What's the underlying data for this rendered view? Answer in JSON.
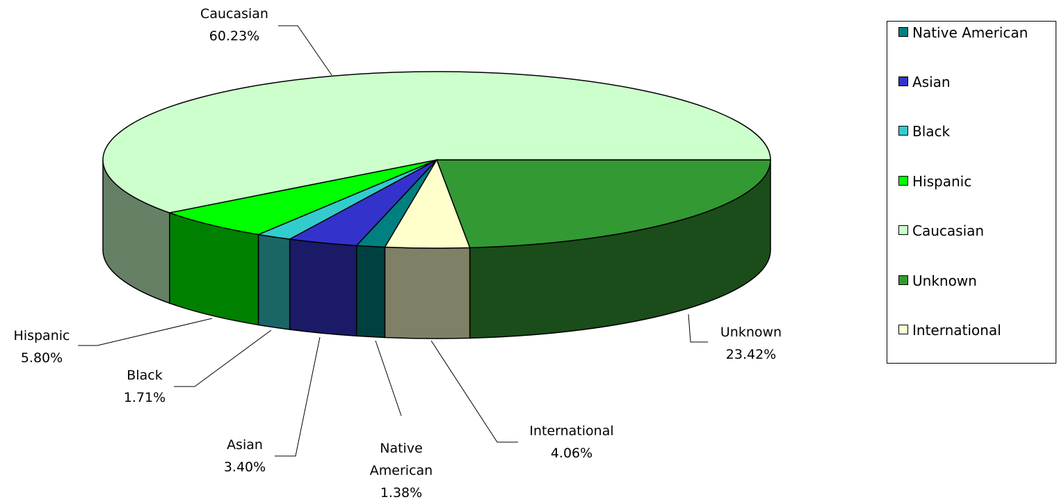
{
  "chart_data": {
    "type": "pie3d",
    "categories": [
      "Native American",
      "Asian",
      "Black",
      "Hispanic",
      "Caucasian",
      "Unknown",
      "International"
    ],
    "values": [
      1.38,
      3.4,
      1.71,
      5.8,
      60.23,
      23.42,
      4.06
    ],
    "value_labels": [
      "1.38%",
      "3.40%",
      "1.71%",
      "5.80%",
      "60.23%",
      "23.42%",
      "4.06%"
    ],
    "colors": [
      "#008080",
      "#3333cc",
      "#33cccc",
      "#00ff00",
      "#ccffcc",
      "#339933",
      "#ffffcc"
    ],
    "legend": "right"
  }
}
